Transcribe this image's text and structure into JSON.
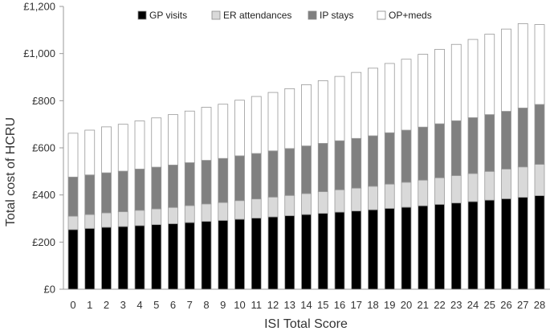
{
  "chart_data": {
    "type": "bar",
    "stacked": true,
    "title": "",
    "xlabel": "ISI Total Score",
    "ylabel": "Total cost of HCRU",
    "ylim": [
      0,
      1200
    ],
    "yticks": [
      "£0",
      "£200",
      "£400",
      "£600",
      "£800",
      "£1,000",
      "£1,200"
    ],
    "ytick_values": [
      0,
      200,
      400,
      600,
      800,
      1000,
      1200
    ],
    "grid": false,
    "legend_position": "top",
    "categories": [
      "0",
      "1",
      "2",
      "3",
      "4",
      "5",
      "6",
      "7",
      "8",
      "9",
      "10",
      "11",
      "12",
      "13",
      "14",
      "15",
      "16",
      "17",
      "18",
      "19",
      "20",
      "21",
      "22",
      "23",
      "24",
      "25",
      "26",
      "27",
      "28"
    ],
    "series": [
      {
        "name": "GP visits",
        "color": "#000000",
        "values": [
          253,
          258,
          263,
          266,
          270,
          274,
          278,
          283,
          288,
          292,
          297,
          302,
          307,
          312,
          317,
          322,
          327,
          332,
          337,
          343,
          348,
          354,
          360,
          366,
          372,
          378,
          384,
          390,
          397
        ]
      },
      {
        "name": "ER attendances",
        "color": "#d9d9d9",
        "values": [
          57,
          59,
          61,
          63,
          65,
          67,
          69,
          72,
          74,
          76,
          79,
          81,
          84,
          86,
          89,
          92,
          95,
          97,
          100,
          103,
          106,
          109,
          113,
          116,
          119,
          122,
          126,
          129,
          133
        ]
      },
      {
        "name": "IP stays",
        "color": "#808080",
        "values": [
          166,
          168,
          170,
          172,
          175,
          177,
          180,
          182,
          185,
          187,
          190,
          193,
          196,
          199,
          202,
          205,
          208,
          211,
          214,
          218,
          221,
          225,
          229,
          233,
          237,
          241,
          245,
          250,
          254
        ]
      },
      {
        "name": "OP+meds",
        "color": "#ffffff",
        "values": [
          186,
          190,
          195,
          199,
          204,
          209,
          214,
          219,
          225,
          230,
          236,
          242,
          248,
          254,
          260,
          266,
          273,
          280,
          287,
          294,
          301,
          309,
          316,
          324,
          332,
          341,
          349,
          358,
          339
        ]
      }
    ]
  }
}
